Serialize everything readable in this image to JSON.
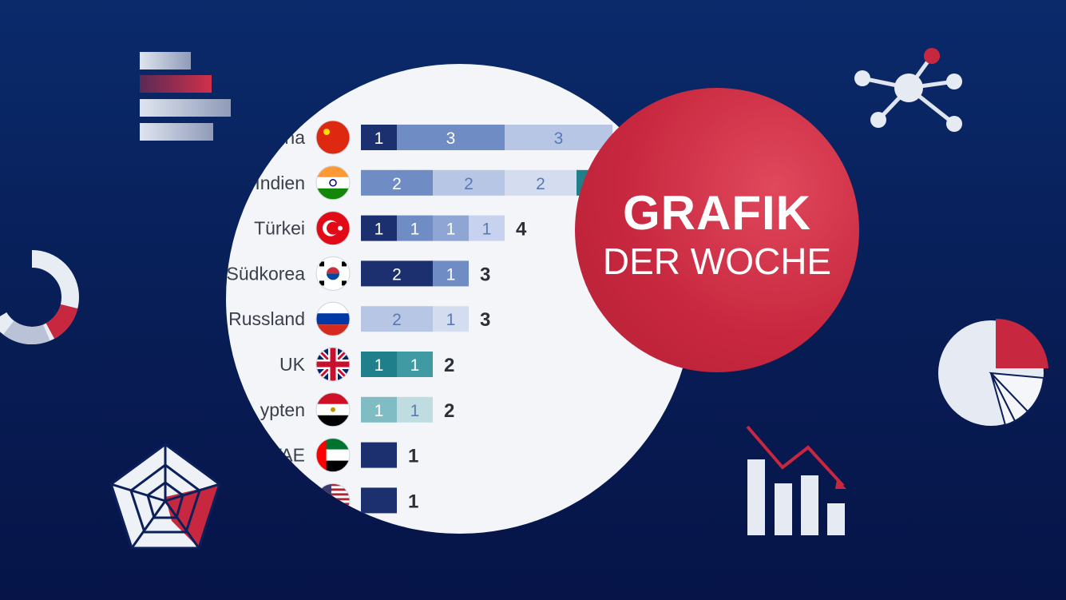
{
  "badge": {
    "line1": "GRAFIK",
    "line2": "DER WOCHE"
  },
  "colors": {
    "navy": "#1c2f6e",
    "blue_mid": "#6f8cc4",
    "blue_light": "#b8c6e6",
    "teal": "#1f7f8b",
    "teal_light": "#7fbcc4",
    "red": "#c8283f",
    "white": "#ffffff"
  },
  "chart_data": {
    "type": "bar",
    "categories": [
      "ina",
      "Indien",
      "Türkei",
      "Südkorea",
      "Russland",
      "UK",
      "ypten",
      "VAE",
      ""
    ],
    "rows": [
      {
        "label": "ina",
        "flag": "china-flag",
        "total": null,
        "segments": [
          {
            "value": 1,
            "color": "#1c2f6e"
          },
          {
            "value": 3,
            "color": "#6f8cc4"
          },
          {
            "value": 3,
            "color": "#b8c6e6"
          }
        ]
      },
      {
        "label": "Indien",
        "flag": "india-flag",
        "total": null,
        "segments": [
          {
            "value": 2,
            "color": "#6f8cc4"
          },
          {
            "value": 2,
            "color": "#b8c6e6"
          },
          {
            "value": 2,
            "color": "#d4ddf0"
          },
          {
            "value": 1,
            "color": "#1f7f8b",
            "nolabel": true
          }
        ]
      },
      {
        "label": "Türkei",
        "flag": "turkey-flag",
        "total": "4",
        "segments": [
          {
            "value": 1,
            "color": "#1c2f6e"
          },
          {
            "value": 1,
            "color": "#6f8cc4"
          },
          {
            "value": 1,
            "color": "#8fa6d4"
          },
          {
            "value": 1,
            "color": "#c7d3ee"
          }
        ]
      },
      {
        "label": "Südkorea",
        "flag": "korea-flag",
        "total": "3",
        "segments": [
          {
            "value": 2,
            "color": "#1c2f6e"
          },
          {
            "value": 1,
            "color": "#6f8cc4"
          }
        ]
      },
      {
        "label": "Russland",
        "flag": "russia-flag",
        "total": "3",
        "segments": [
          {
            "value": 2,
            "color": "#b8c6e6"
          },
          {
            "value": 1,
            "color": "#d4ddf0"
          }
        ]
      },
      {
        "label": "UK",
        "flag": "uk-flag",
        "total": "2",
        "segments": [
          {
            "value": 1,
            "color": "#1f7f8b"
          },
          {
            "value": 1,
            "color": "#3f9aa4"
          }
        ]
      },
      {
        "label": "ypten",
        "flag": "egypt-flag",
        "total": "2",
        "segments": [
          {
            "value": 1,
            "color": "#7fbcc4"
          },
          {
            "value": 1,
            "color": "#bfdde1"
          }
        ]
      },
      {
        "label": "VAE",
        "flag": "uae-flag",
        "total": "1",
        "segments": [
          {
            "value": 1,
            "color": "#1c2f6e",
            "nolabel": true
          }
        ]
      },
      {
        "label": "",
        "flag": "usa-flag",
        "total": "1",
        "segments": [
          {
            "value": 1,
            "color": "#1c2f6e",
            "nolabel": true
          }
        ]
      }
    ]
  }
}
